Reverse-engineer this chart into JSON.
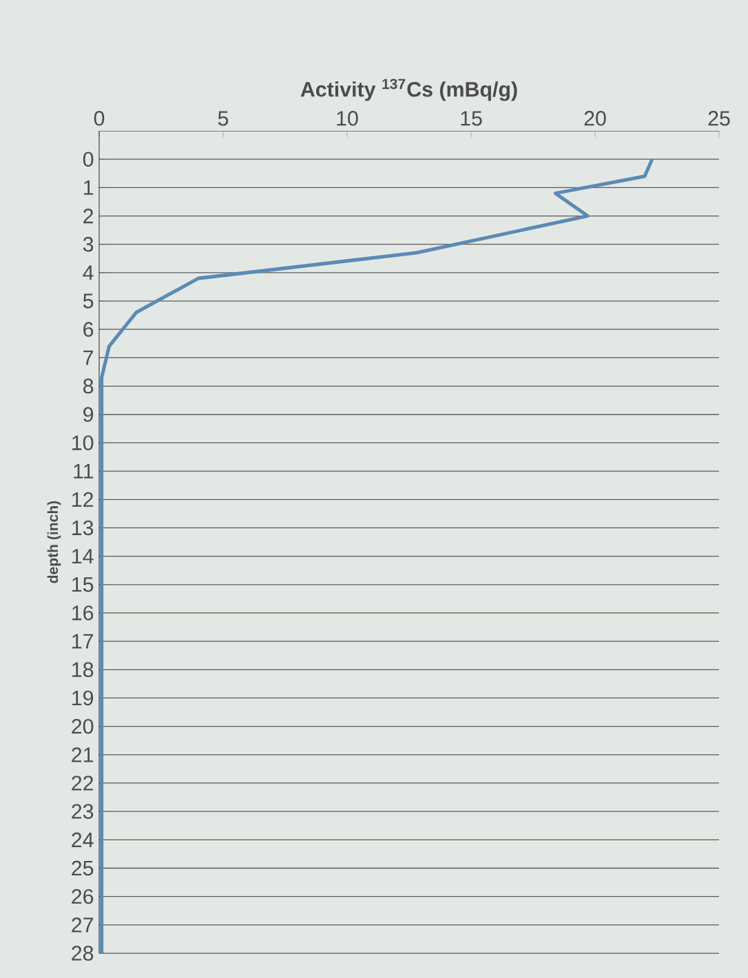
{
  "chart_data": {
    "type": "line",
    "xlabel": "Activity $^{137}$Cs (mBq/g)",
    "ylabel": "depth (inch)",
    "x": [
      22.3,
      22.0,
      18.4,
      19.7,
      12.8,
      4.0,
      1.5,
      0.4,
      0.1,
      0.1,
      0.1,
      0.1,
      0.1
    ],
    "values": [
      0,
      0.6,
      1.2,
      2.0,
      3.3,
      4.2,
      5.4,
      6.6,
      7.7,
      10,
      15,
      20,
      28
    ],
    "color": "#5b8ab5",
    "xlim": [
      0,
      25
    ],
    "xticks": [
      0,
      5,
      10,
      15,
      20,
      25
    ],
    "ylim": [
      28,
      -1
    ],
    "yticks": [
      0,
      1,
      2,
      3,
      4,
      5,
      6,
      7,
      8,
      9,
      10,
      11,
      12,
      13,
      14,
      15,
      16,
      17,
      18,
      19,
      20,
      21,
      22,
      23,
      24,
      25,
      26,
      27,
      28
    ],
    "grid": "y",
    "marker": "none",
    "line_style": "solid"
  }
}
